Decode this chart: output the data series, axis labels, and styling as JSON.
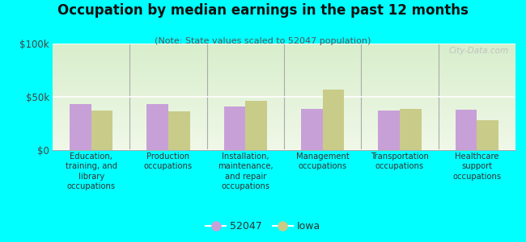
{
  "title": "Occupation by median earnings in the past 12 months",
  "subtitle": "(Note: State values scaled to 52047 population)",
  "background_color": "#00FFFF",
  "chart_bg_gradient_top": "#d8eecc",
  "chart_bg_gradient_bottom": "#f0f8e8",
  "categories": [
    "Education,\ntraining, and\nlibrary\noccupations",
    "Production\noccupations",
    "Installation,\nmaintenance,\nand repair\noccupations",
    "Management\noccupations",
    "Transportation\noccupations",
    "Healthcare\nsupport\noccupations"
  ],
  "values_52047": [
    43000,
    43000,
    41000,
    39000,
    37000,
    38000
  ],
  "values_iowa": [
    37000,
    36000,
    46000,
    57000,
    39000,
    28000
  ],
  "color_52047": "#c8a0d8",
  "color_iowa": "#c8cc88",
  "ylim": [
    0,
    100000
  ],
  "yticks": [
    0,
    50000,
    100000
  ],
  "ytick_labels": [
    "$0",
    "$50k",
    "$100k"
  ],
  "legend_labels": [
    "52047",
    "Iowa"
  ],
  "watermark": "City-Data.com",
  "divider_color": "#aaaaaa",
  "spine_color": "#aaaaaa"
}
